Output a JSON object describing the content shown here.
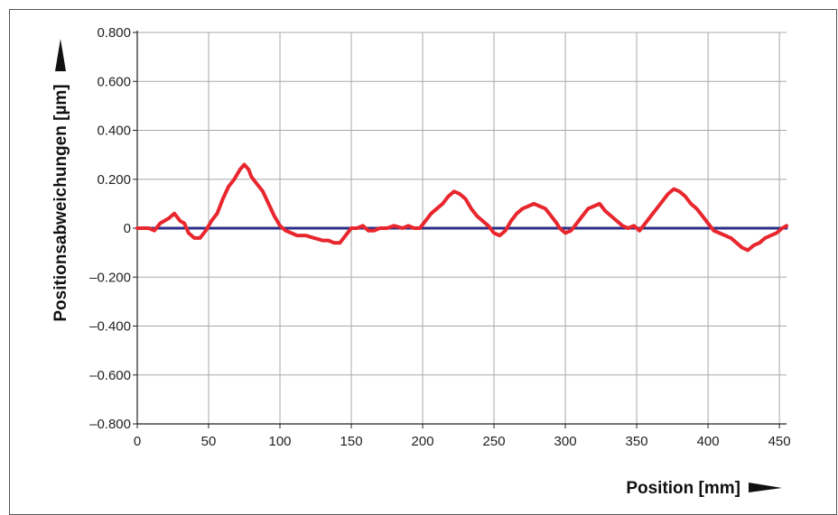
{
  "chart_data": {
    "type": "line",
    "xlabel": "Position [mm]",
    "ylabel": "Positionsabweichungen [µm]",
    "xlim": [
      0,
      455
    ],
    "ylim": [
      -0.8,
      0.8
    ],
    "xticks": [
      0,
      50,
      100,
      150,
      200,
      250,
      300,
      350,
      400,
      450
    ],
    "xtick_labels": [
      "0",
      "50",
      "100",
      "150",
      "200",
      "250",
      "300",
      "350",
      "400",
      "450"
    ],
    "yticks": [
      0.8,
      0.6,
      0.4,
      0.2,
      0,
      -0.2,
      -0.4,
      -0.6,
      -0.8
    ],
    "ytick_labels": [
      "0.800",
      "0.600",
      "0.400",
      "0.200",
      "0",
      "–0.200",
      "–0.400",
      "–0.600",
      "–0.800"
    ],
    "grid": true,
    "series": [
      {
        "color": "#e8262d",
        "x": [
          0,
          8,
          12,
          16,
          22,
          26,
          30,
          33,
          36,
          40,
          44,
          48,
          52,
          56,
          60,
          64,
          68,
          72,
          75,
          78,
          80,
          84,
          88,
          92,
          96,
          100,
          104,
          108,
          112,
          118,
          124,
          130,
          134,
          138,
          142,
          146,
          150,
          154,
          158,
          162,
          166,
          170,
          175,
          180,
          186,
          190,
          194,
          198,
          202,
          206,
          210,
          214,
          218,
          222,
          226,
          230,
          234,
          238,
          242,
          246,
          250,
          254,
          258,
          262,
          266,
          270,
          274,
          278,
          282,
          286,
          290,
          294,
          296,
          300,
          304,
          308,
          312,
          316,
          320,
          324,
          328,
          332,
          336,
          340,
          344,
          348,
          352,
          356,
          360,
          364,
          368,
          372,
          376,
          380,
          384,
          388,
          392,
          396,
          400,
          404,
          408,
          412,
          416,
          420,
          424,
          428,
          432,
          436,
          440,
          444,
          448,
          452,
          455
        ],
        "y": [
          0,
          0,
          -0.01,
          0.02,
          0.04,
          0.06,
          0.03,
          0.02,
          -0.02,
          -0.04,
          -0.04,
          -0.01,
          0.03,
          0.06,
          0.12,
          0.17,
          0.2,
          0.24,
          0.26,
          0.24,
          0.21,
          0.18,
          0.15,
          0.1,
          0.05,
          0.01,
          -0.01,
          -0.02,
          -0.03,
          -0.03,
          -0.04,
          -0.05,
          -0.05,
          -0.06,
          -0.06,
          -0.03,
          0,
          0,
          0.01,
          -0.01,
          -0.01,
          0,
          0,
          0.01,
          0,
          0.01,
          0,
          0,
          0.03,
          0.06,
          0.08,
          0.1,
          0.13,
          0.15,
          0.14,
          0.12,
          0.08,
          0.05,
          0.03,
          0.01,
          -0.02,
          -0.03,
          -0.01,
          0.03,
          0.06,
          0.08,
          0.09,
          0.1,
          0.09,
          0.08,
          0.05,
          0.02,
          0,
          -0.02,
          -0.01,
          0.02,
          0.05,
          0.08,
          0.09,
          0.1,
          0.07,
          0.05,
          0.03,
          0.01,
          0,
          0.01,
          -0.01,
          0.02,
          0.05,
          0.08,
          0.11,
          0.14,
          0.16,
          0.15,
          0.13,
          0.1,
          0.08,
          0.05,
          0.02,
          -0.01,
          -0.02,
          -0.03,
          -0.04,
          -0.06,
          -0.08,
          -0.09,
          -0.07,
          -0.06,
          -0.04,
          -0.03,
          -0.02,
          0,
          0.01
        ]
      },
      {
        "color": "#2b2e86",
        "x": [
          0,
          455
        ],
        "y": [
          0,
          0
        ]
      }
    ]
  }
}
